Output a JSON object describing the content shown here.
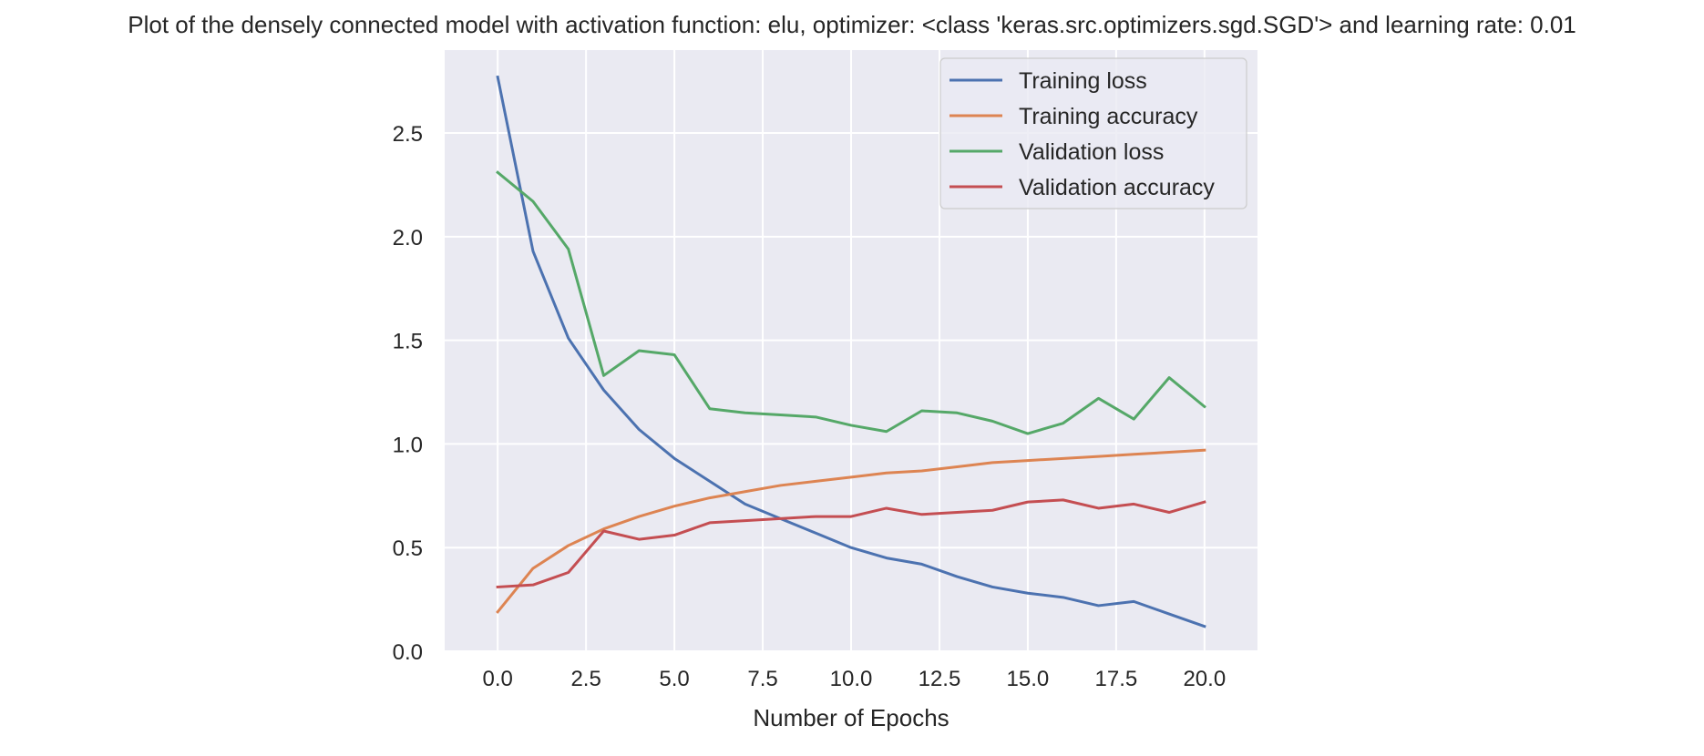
{
  "chart_data": {
    "type": "line",
    "title": "Plot of the densely connected model with activation function: elu, optimizer: <class 'keras.src.optimizers.sgd.SGD'> and learning rate: 0.01",
    "xlabel": "Number of Epochs",
    "ylabel": "",
    "xlim": [
      -1.5,
      21.5
    ],
    "ylim": [
      0,
      2.9
    ],
    "grid": true,
    "legend_position": "top-right",
    "x_ticks": [
      0,
      2.5,
      5,
      7.5,
      10,
      12.5,
      15,
      17.5,
      20
    ],
    "x_tick_labels": [
      "0.0",
      "2.5",
      "5.0",
      "7.5",
      "10.0",
      "12.5",
      "15.0",
      "17.5",
      "20.0"
    ],
    "y_ticks": [
      0,
      0.5,
      1.0,
      1.5,
      2.0,
      2.5
    ],
    "y_tick_labels": [
      "0.0",
      "0.5",
      "1.0",
      "1.5",
      "2.0",
      "2.5"
    ],
    "x": [
      0,
      1,
      2,
      3,
      4,
      5,
      6,
      7,
      8,
      9,
      10,
      11,
      12,
      13,
      14,
      15,
      16,
      17,
      18,
      19,
      20
    ],
    "series": [
      {
        "name": "Training loss",
        "color": "#4c72b0",
        "values": [
          2.77,
          1.93,
          1.51,
          1.26,
          1.07,
          0.93,
          0.82,
          0.71,
          0.64,
          0.57,
          0.5,
          0.45,
          0.42,
          0.36,
          0.31,
          0.28,
          0.26,
          0.22,
          0.24,
          0.18,
          0.12
        ]
      },
      {
        "name": "Training accuracy",
        "color": "#dd8452",
        "values": [
          0.19,
          0.4,
          0.51,
          0.59,
          0.65,
          0.7,
          0.74,
          0.77,
          0.8,
          0.82,
          0.84,
          0.86,
          0.87,
          0.89,
          0.91,
          0.92,
          0.93,
          0.94,
          0.95,
          0.96,
          0.97
        ]
      },
      {
        "name": "Validation loss",
        "color": "#55a868",
        "values": [
          2.31,
          2.17,
          1.94,
          1.33,
          1.45,
          1.43,
          1.17,
          1.15,
          1.14,
          1.13,
          1.09,
          1.06,
          1.16,
          1.15,
          1.11,
          1.05,
          1.1,
          1.22,
          1.12,
          1.32,
          1.18
        ]
      },
      {
        "name": "Validation accuracy",
        "color": "#c44e52",
        "values": [
          0.31,
          0.32,
          0.38,
          0.58,
          0.54,
          0.56,
          0.62,
          0.63,
          0.64,
          0.65,
          0.65,
          0.69,
          0.66,
          0.67,
          0.68,
          0.72,
          0.73,
          0.69,
          0.71,
          0.67,
          0.72
        ]
      }
    ],
    "plot_background": "#eaeaf2",
    "grid_color": "#ffffff"
  }
}
